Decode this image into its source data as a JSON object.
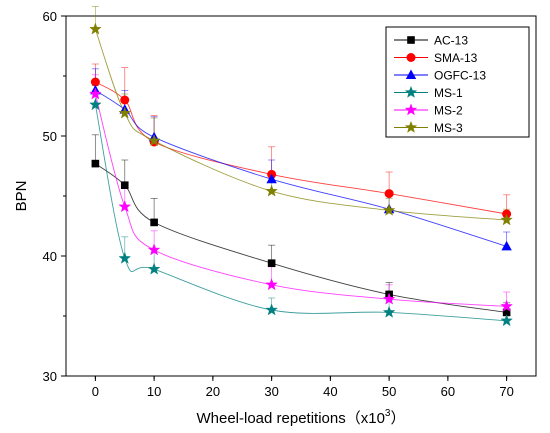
{
  "chart_data": {
    "type": "line",
    "title": "",
    "xlabel": "Wheel-load repetitions（x10",
    "xlabel_sup": "3",
    "xlabel_end": "）",
    "ylabel": "BPN",
    "xlim": [
      -5,
      75
    ],
    "ylim": [
      30,
      60
    ],
    "x_ticks": [
      0,
      10,
      20,
      30,
      40,
      50,
      60,
      70
    ],
    "y_ticks": [
      30,
      40,
      50,
      60
    ],
    "grid": false,
    "legend_position": "top-right",
    "series": [
      {
        "name": "AC-13",
        "color": "#000000",
        "marker": "square",
        "x": [
          0,
          5,
          10,
          30,
          50,
          70
        ],
        "y": [
          47.7,
          45.9,
          42.8,
          39.4,
          36.8,
          35.3
        ],
        "err": [
          2.4,
          2.1,
          2.0,
          1.5,
          1.0,
          0.8
        ]
      },
      {
        "name": "SMA-13",
        "color": "#ff0000",
        "marker": "circle",
        "x": [
          0,
          5,
          10,
          30,
          50,
          70
        ],
        "y": [
          54.5,
          53.0,
          49.5,
          46.8,
          45.2,
          43.5
        ],
        "err": [
          1.5,
          2.7,
          2.2,
          2.3,
          1.8,
          1.6
        ]
      },
      {
        "name": "OGFC-13",
        "color": "#0000ff",
        "marker": "triangle",
        "x": [
          0,
          5,
          10,
          30,
          50,
          70
        ],
        "y": [
          53.8,
          52.2,
          49.9,
          46.4,
          43.9,
          40.8
        ],
        "err": [
          1.8,
          1.6,
          1.7,
          1.6,
          1.4,
          1.2
        ]
      },
      {
        "name": "MS-1",
        "color": "#008080",
        "marker": "star",
        "x": [
          0,
          5,
          10,
          30,
          50,
          70
        ],
        "y": [
          52.6,
          39.8,
          38.9,
          35.5,
          35.3,
          34.6
        ],
        "err": [
          1.6,
          1.8,
          1.4,
          1.0,
          1.0,
          0.9
        ]
      },
      {
        "name": "MS-2",
        "color": "#ff00ff",
        "marker": "star",
        "x": [
          0,
          5,
          10,
          30,
          50,
          70
        ],
        "y": [
          53.5,
          44.1,
          40.5,
          37.6,
          36.4,
          35.8
        ],
        "err": [
          1.6,
          1.7,
          1.6,
          1.5,
          1.2,
          1.2
        ]
      },
      {
        "name": "MS-3",
        "color": "#808000",
        "marker": "star",
        "x": [
          0,
          5,
          10,
          30,
          50,
          70
        ],
        "y": [
          58.9,
          51.9,
          49.6,
          45.4,
          43.8,
          43.0
        ],
        "err": [
          1.9,
          1.6,
          1.9,
          1.3,
          1.0,
          0.9
        ]
      }
    ]
  }
}
